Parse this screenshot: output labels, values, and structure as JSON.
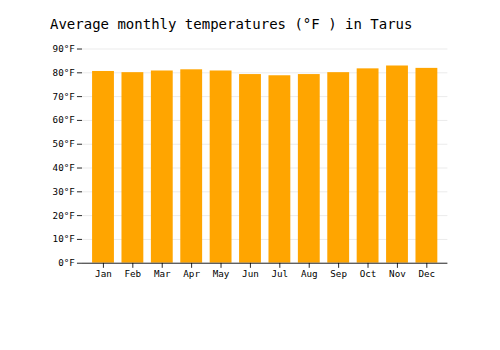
{
  "chart_data": {
    "type": "bar",
    "title": "Average monthly temperatures (°F ) in Tarus",
    "categories": [
      "Jan",
      "Feb",
      "Mar",
      "Apr",
      "May",
      "Jun",
      "Jul",
      "Aug",
      "Sep",
      "Oct",
      "Nov",
      "Dec"
    ],
    "values": [
      80.6,
      80.1,
      80.8,
      81.3,
      80.8,
      79.3,
      78.8,
      79.3,
      80.1,
      81.7,
      82.9,
      81.9
    ],
    "color": "#FFA500",
    "ylim": [
      0,
      90
    ],
    "yticks": [
      {
        "value": 0,
        "label": "0°F"
      },
      {
        "value": 10,
        "label": "10°F"
      },
      {
        "value": 20,
        "label": "20°F"
      },
      {
        "value": 30,
        "label": "30°F"
      },
      {
        "value": 40,
        "label": "40°F"
      },
      {
        "value": 50,
        "label": "50°F"
      },
      {
        "value": 60,
        "label": "60°F"
      },
      {
        "value": 70,
        "label": "70°F"
      },
      {
        "value": 80,
        "label": "80°F"
      },
      {
        "value": 90,
        "label": "90°F"
      }
    ],
    "grid": true
  }
}
